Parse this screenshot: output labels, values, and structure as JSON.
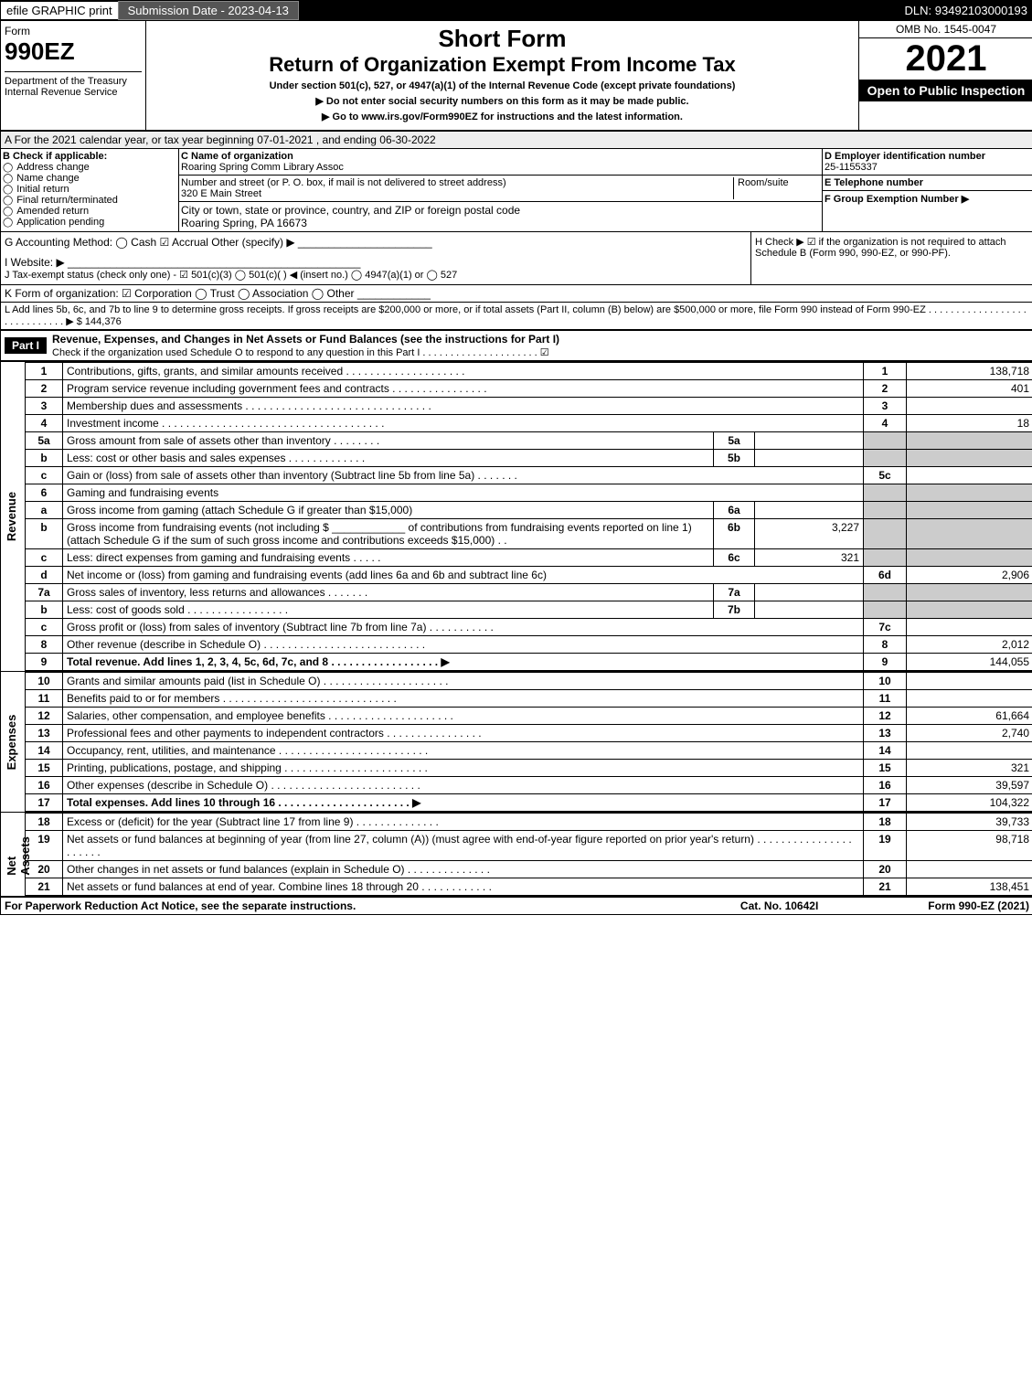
{
  "topbar": {
    "efile": "efile GRAPHIC print",
    "submission": "Submission Date - 2023-04-13",
    "dln": "DLN: 93492103000193"
  },
  "hdr": {
    "form_word": "Form",
    "form_code": "990EZ",
    "dept": "Department of the Treasury\nInternal Revenue Service",
    "short": "Short Form",
    "title": "Return of Organization Exempt From Income Tax",
    "subtitle": "Under section 501(c), 527, or 4947(a)(1) of the Internal Revenue Code (except private foundations)",
    "warn1": "▶ Do not enter social security numbers on this form as it may be made public.",
    "warn2": "▶ Go to www.irs.gov/Form990EZ for instructions and the latest information.",
    "omb": "OMB No. 1545-0047",
    "year": "2021",
    "badge": "Open to Public Inspection"
  },
  "A": "A  For the 2021 calendar year, or tax year beginning 07-01-2021 , and ending 06-30-2022",
  "B": {
    "title": "B  Check if applicable:",
    "opts": [
      "Address change",
      "Name change",
      "Initial return",
      "Final return/terminated",
      "Amended return",
      "Application pending"
    ]
  },
  "C": {
    "name_lbl": "C Name of organization",
    "name": "Roaring Spring Comm Library Assoc",
    "addr_lbl": "Number and street (or P. O. box, if mail is not delivered to street address)",
    "room_lbl": "Room/suite",
    "addr": "320 E Main Street",
    "city_lbl": "City or town, state or province, country, and ZIP or foreign postal code",
    "city": "Roaring Spring, PA  16673"
  },
  "D": {
    "lbl": "D Employer identification number",
    "val": "25-1155337"
  },
  "E": {
    "lbl": "E Telephone number",
    "val": ""
  },
  "F": {
    "lbl": "F Group Exemption Number  ▶",
    "val": ""
  },
  "G": "G Accounting Method:  ◯ Cash  ☑ Accrual  Other (specify) ▶ ______________________",
  "H": "H  Check ▶ ☑ if the organization is not required to attach Schedule B (Form 990, 990-EZ, or 990-PF).",
  "I": "I Website: ▶ ________________________________________________",
  "J": "J Tax-exempt status (check only one) - ☑ 501(c)(3)  ◯ 501(c)(  ) ◀ (insert no.)  ◯ 4947(a)(1) or  ◯ 527",
  "K": "K Form of organization:  ☑ Corporation  ◯ Trust  ◯ Association  ◯ Other  ____________",
  "L": "L Add lines 5b, 6c, and 7b to line 9 to determine gross receipts. If gross receipts are $200,000 or more, or if total assets (Part II, column (B) below) are $500,000 or more, file Form 990 instead of Form 990-EZ  . . . . . . . . . . . . . . . . . . . . . . . . . . . . .  ▶ $ 144,376",
  "part1": {
    "label": "Part I",
    "title": "Revenue, Expenses, and Changes in Net Assets or Fund Balances (see the instructions for Part I)",
    "check": "Check if the organization used Schedule O to respond to any question in this Part I  . . . . . . . . . . . . . . . . . . . . .  ☑"
  },
  "revenue_label": "Revenue",
  "expenses_label": "Expenses",
  "netassets_label": "Net Assets",
  "rows": [
    {
      "n": "1",
      "d": "Contributions, gifts, grants, and similar amounts received  . . . . . . . . . . . . . . . . . . . .",
      "nn": "1",
      "v": "138,718"
    },
    {
      "n": "2",
      "d": "Program service revenue including government fees and contracts  . . . . . . . . . . . . . . . .",
      "nn": "2",
      "v": "401"
    },
    {
      "n": "3",
      "d": "Membership dues and assessments  . . . . . . . . . . . . . . . . . . . . . . . . . . . . . . .",
      "nn": "3",
      "v": ""
    },
    {
      "n": "4",
      "d": "Investment income  . . . . . . . . . . . . . . . . . . . . . . . . . . . . . . . . . . . . .",
      "nn": "4",
      "v": "18"
    },
    {
      "n": "5a",
      "d": "Gross amount from sale of assets other than inventory  . . . . . . . .",
      "sub": "5a",
      "sv": "",
      "nn": "",
      "v": "",
      "shade": true
    },
    {
      "n": "b",
      "d": "Less: cost or other basis and sales expenses  . . . . . . . . . . . . .",
      "sub": "5b",
      "sv": "",
      "nn": "",
      "v": "",
      "shade": true
    },
    {
      "n": "c",
      "d": "Gain or (loss) from sale of assets other than inventory (Subtract line 5b from line 5a)  . . . . . . .",
      "nn": "5c",
      "v": ""
    },
    {
      "n": "6",
      "d": "Gaming and fundraising events",
      "nn": "",
      "v": "",
      "shade": true
    },
    {
      "n": "a",
      "d": "Gross income from gaming (attach Schedule G if greater than $15,000)",
      "sub": "6a",
      "sv": "",
      "nn": "",
      "v": "",
      "shade": true
    },
    {
      "n": "b",
      "d": "Gross income from fundraising events (not including $ ____________ of contributions from fundraising events reported on line 1) (attach Schedule G if the sum of such gross income and contributions exceeds $15,000)  . .",
      "sub": "6b",
      "sv": "3,227",
      "nn": "",
      "v": "",
      "shade": true
    },
    {
      "n": "c",
      "d": "Less: direct expenses from gaming and fundraising events  . . . . .",
      "sub": "6c",
      "sv": "321",
      "nn": "",
      "v": "",
      "shade": true
    },
    {
      "n": "d",
      "d": "Net income or (loss) from gaming and fundraising events (add lines 6a and 6b and subtract line 6c)",
      "nn": "6d",
      "v": "2,906"
    },
    {
      "n": "7a",
      "d": "Gross sales of inventory, less returns and allowances  . . . . . . .",
      "sub": "7a",
      "sv": "",
      "nn": "",
      "v": "",
      "shade": true
    },
    {
      "n": "b",
      "d": "Less: cost of goods sold     . . . . . . . . . . . . . . . . .",
      "sub": "7b",
      "sv": "",
      "nn": "",
      "v": "",
      "shade": true
    },
    {
      "n": "c",
      "d": "Gross profit or (loss) from sales of inventory (Subtract line 7b from line 7a)  . . . . . . . . . . .",
      "nn": "7c",
      "v": ""
    },
    {
      "n": "8",
      "d": "Other revenue (describe in Schedule O)  . . . . . . . . . . . . . . . . . . . . . . . . . . .",
      "nn": "8",
      "v": "2,012"
    },
    {
      "n": "9",
      "d": "Total revenue. Add lines 1, 2, 3, 4, 5c, 6d, 7c, and 8  . . . . . . . . . . . . . . . . . .  ▶",
      "nn": "9",
      "v": "144,055",
      "bold": true
    }
  ],
  "exp_rows": [
    {
      "n": "10",
      "d": "Grants and similar amounts paid (list in Schedule O)  . . . . . . . . . . . . . . . . . . . . .",
      "nn": "10",
      "v": ""
    },
    {
      "n": "11",
      "d": "Benefits paid to or for members   . . . . . . . . . . . . . . . . . . . . . . . . . . . . .",
      "nn": "11",
      "v": ""
    },
    {
      "n": "12",
      "d": "Salaries, other compensation, and employee benefits  . . . . . . . . . . . . . . . . . . . . .",
      "nn": "12",
      "v": "61,664"
    },
    {
      "n": "13",
      "d": "Professional fees and other payments to independent contractors  . . . . . . . . . . . . . . . .",
      "nn": "13",
      "v": "2,740"
    },
    {
      "n": "14",
      "d": "Occupancy, rent, utilities, and maintenance  . . . . . . . . . . . . . . . . . . . . . . . . .",
      "nn": "14",
      "v": ""
    },
    {
      "n": "15",
      "d": "Printing, publications, postage, and shipping  . . . . . . . . . . . . . . . . . . . . . . . .",
      "nn": "15",
      "v": "321"
    },
    {
      "n": "16",
      "d": "Other expenses (describe in Schedule O)    . . . . . . . . . . . . . . . . . . . . . . . . .",
      "nn": "16",
      "v": "39,597"
    },
    {
      "n": "17",
      "d": "Total expenses. Add lines 10 through 16   . . . . . . . . . . . . . . . . . . . . . .  ▶",
      "nn": "17",
      "v": "104,322",
      "bold": true
    }
  ],
  "na_rows": [
    {
      "n": "18",
      "d": "Excess or (deficit) for the year (Subtract line 17 from line 9)      . . . . . . . . . . . . . .",
      "nn": "18",
      "v": "39,733"
    },
    {
      "n": "19",
      "d": "Net assets or fund balances at beginning of year (from line 27, column (A)) (must agree with end-of-year figure reported on prior year's return)  . . . . . . . . . . . . . . . . . . . . . .",
      "nn": "19",
      "v": "98,718"
    },
    {
      "n": "20",
      "d": "Other changes in net assets or fund balances (explain in Schedule O)  . . . . . . . . . . . . . .",
      "nn": "20",
      "v": ""
    },
    {
      "n": "21",
      "d": "Net assets or fund balances at end of year. Combine lines 18 through 20  . . . . . . . . . . . .",
      "nn": "21",
      "v": "138,451"
    }
  ],
  "footer": {
    "l": "For Paperwork Reduction Act Notice, see the separate instructions.",
    "c": "Cat. No. 10642I",
    "r": "Form 990-EZ (2021)"
  }
}
